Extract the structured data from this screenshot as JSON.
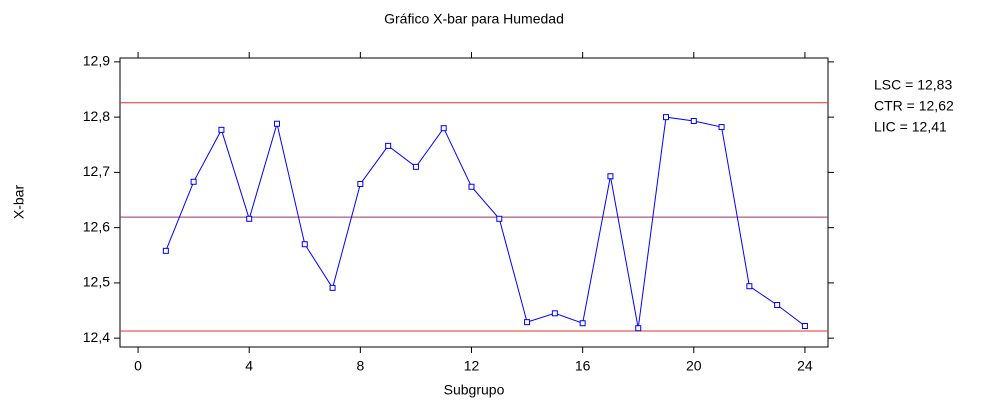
{
  "chart_data": {
    "type": "line",
    "title": "Gráfico X-bar para Humedad",
    "x_label": "Subgrupo",
    "y_label": "X-bar",
    "x": [
      1,
      2,
      3,
      4,
      5,
      6,
      7,
      8,
      9,
      10,
      11,
      12,
      13,
      14,
      15,
      16,
      17,
      18,
      19,
      20,
      21,
      22,
      23,
      24
    ],
    "series": [
      {
        "name": "X-bar",
        "color": "#0000ff",
        "values": [
          12.558,
          12.683,
          12.777,
          12.616,
          12.788,
          12.57,
          12.491,
          12.679,
          12.748,
          12.71,
          12.78,
          12.674,
          12.616,
          12.429,
          12.445,
          12.427,
          12.693,
          12.418,
          12.8,
          12.793,
          12.782,
          12.494,
          12.46,
          12.422
        ]
      }
    ],
    "control_limits": [
      {
        "name": "LSC",
        "value": 12.826,
        "label": "LSC = 12,83",
        "color": "#e03030"
      },
      {
        "name": "CTR",
        "value": 12.619,
        "label": "CTR = 12,62",
        "color": "#993366"
      },
      {
        "name": "LIC",
        "value": 12.413,
        "label": "LIC = 12,41",
        "color": "#e03030"
      }
    ],
    "xlim": [
      -0.65,
      24.83
    ],
    "xticks": [
      0,
      4,
      8,
      12,
      16,
      20,
      24
    ],
    "ylim": [
      12.384,
      12.907
    ],
    "yticks": [
      {
        "value": 12.4,
        "label": "12,4"
      },
      {
        "value": 12.5,
        "label": "12,5"
      },
      {
        "value": 12.6,
        "label": "12,6"
      },
      {
        "value": 12.7,
        "label": "12,7"
      },
      {
        "value": 12.8,
        "label": "12,8"
      },
      {
        "value": 12.9,
        "label": "12,9"
      }
    ]
  }
}
